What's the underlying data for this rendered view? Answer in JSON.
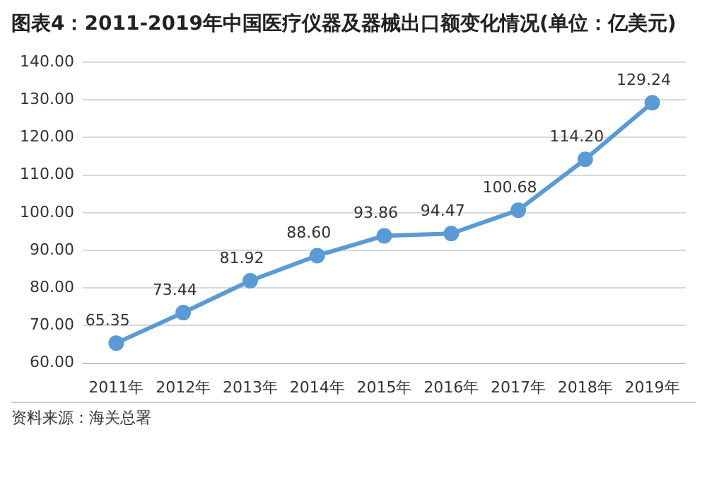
{
  "chart_data": {
    "type": "line",
    "title": "图表4：2011-2019年中国医疗仪器及器械出口额变化情况(单位：亿美元)",
    "categories": [
      "2011年",
      "2012年",
      "2013年",
      "2014年",
      "2015年",
      "2016年",
      "2017年",
      "2018年",
      "2019年"
    ],
    "values": [
      65.35,
      73.44,
      81.92,
      88.6,
      93.86,
      94.47,
      100.68,
      114.2,
      129.24
    ],
    "value_labels": [
      "65.35",
      "73.44",
      "81.92",
      "88.60",
      "93.86",
      "94.47",
      "100.68",
      "114.20",
      "129.24"
    ],
    "color": "#5b9bd5",
    "ylim": [
      60,
      140
    ],
    "yticks": [
      {
        "value": 60,
        "label": "60.00"
      },
      {
        "value": 70,
        "label": "70.00"
      },
      {
        "value": 80,
        "label": "80.00"
      },
      {
        "value": 90,
        "label": "90.00"
      },
      {
        "value": 100,
        "label": "100.00"
      },
      {
        "value": 110,
        "label": "110.00"
      },
      {
        "value": 120,
        "label": "120.00"
      },
      {
        "value": 130,
        "label": "130.00"
      },
      {
        "value": 140,
        "label": "140.00"
      }
    ],
    "grid": "y",
    "marker": "circle",
    "legend": false,
    "annotations": [
      "资料来源：海关总署"
    ]
  }
}
